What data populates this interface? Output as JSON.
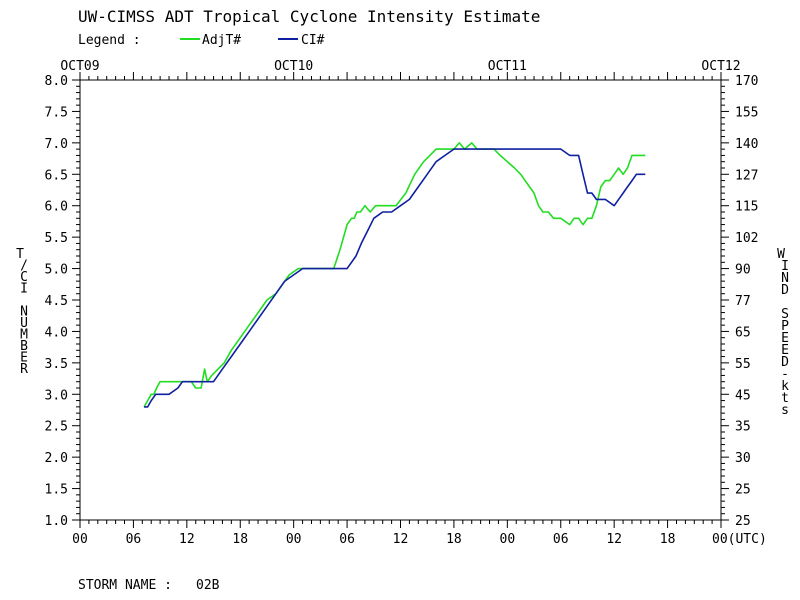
{
  "chart_data": {
    "type": "line",
    "title": "UW-CIMSS ADT Tropical Cyclone Intensity Estimate",
    "legend": {
      "label": "Legend :",
      "placement": "top-left",
      "entries": [
        {
          "name": "AdjT#",
          "color": "#22dd22"
        },
        {
          "name": "CI#",
          "color": "#1020a0"
        }
      ]
    },
    "ylabel_left": "T/CI NUMBER",
    "ylabel_right": "WIND SPEED-kts",
    "ylim": [
      1.0,
      8.0
    ],
    "y_ticks": [
      1.0,
      1.5,
      2.0,
      2.5,
      3.0,
      3.5,
      4.0,
      4.5,
      5.0,
      5.5,
      6.0,
      6.5,
      7.0,
      7.5,
      8.0
    ],
    "y_tick_labels": [
      "1.0",
      "1.5",
      "2.0",
      "2.5",
      "3.0",
      "3.5",
      "4.0",
      "4.5",
      "5.0",
      "5.5",
      "6.0",
      "6.5",
      "7.0",
      "7.5",
      "8.0"
    ],
    "right_tick_labels": [
      "25",
      "25",
      "30",
      "35",
      "45",
      "55",
      "65",
      "77",
      "90",
      "102",
      "115",
      "127",
      "140",
      "155",
      "170"
    ],
    "xlim": [
      0,
      72
    ],
    "x_ticks": [
      0,
      6,
      12,
      18,
      24,
      30,
      36,
      42,
      48,
      54,
      60,
      66,
      72
    ],
    "x_tick_labels": [
      "00",
      "06",
      "12",
      "18",
      "00",
      "06",
      "12",
      "18",
      "00",
      "06",
      "12",
      "18",
      "00(UTC)"
    ],
    "date_ticks": [
      0,
      24,
      48,
      72
    ],
    "date_labels": [
      "OCT09",
      "OCT10",
      "OCT11",
      "OCT12"
    ],
    "grid": false,
    "series": [
      {
        "name": "AdjT#",
        "color": "#22dd22",
        "x": [
          7.2,
          7.6,
          8.0,
          8.3,
          8.6,
          9.0,
          9.5,
          10.0,
          11.0,
          11.5,
          12.5,
          13.0,
          13.6,
          14.0,
          14.3,
          14.8,
          15.5,
          16.2,
          17.0,
          18.0,
          19.0,
          20.0,
          21.0,
          22.0,
          23.0,
          23.5,
          24.5,
          25.5,
          26.5,
          27.5,
          28.5,
          29.2,
          30.0,
          30.5,
          30.8,
          31.1,
          31.5,
          32.0,
          32.6,
          33.2,
          33.8,
          34.3,
          35.5,
          36.6,
          37.6,
          38.6,
          39.3,
          40.0,
          40.6,
          41.3,
          42.0,
          42.6,
          43.2,
          44.0,
          44.6,
          45.2,
          45.8,
          46.5,
          47.2,
          48.0,
          48.8,
          49.5,
          50.0,
          50.5,
          51.0,
          51.5,
          52.0,
          52.6,
          53.2,
          54.0,
          55.0,
          55.5,
          56.0,
          56.5,
          57.0,
          57.5,
          58.0,
          58.5,
          59.0,
          59.5,
          60.0,
          60.5,
          61.0,
          61.5,
          62.0,
          62.5,
          63.0,
          63.5
        ],
        "values": [
          2.8,
          2.9,
          3.0,
          3.0,
          3.1,
          3.2,
          3.2,
          3.2,
          3.2,
          3.2,
          3.2,
          3.1,
          3.1,
          3.4,
          3.2,
          3.3,
          3.4,
          3.5,
          3.7,
          3.9,
          4.1,
          4.3,
          4.5,
          4.6,
          4.8,
          4.9,
          5.0,
          5.0,
          5.0,
          5.0,
          5.0,
          5.3,
          5.7,
          5.8,
          5.8,
          5.9,
          5.9,
          6.0,
          5.9,
          6.0,
          6.0,
          6.0,
          6.0,
          6.2,
          6.5,
          6.7,
          6.8,
          6.9,
          6.9,
          6.9,
          6.9,
          7.0,
          6.9,
          7.0,
          6.9,
          6.9,
          6.9,
          6.9,
          6.8,
          6.7,
          6.6,
          6.5,
          6.4,
          6.3,
          6.2,
          6.0,
          5.9,
          5.9,
          5.8,
          5.8,
          5.7,
          5.8,
          5.8,
          5.7,
          5.8,
          5.8,
          6.0,
          6.3,
          6.4,
          6.4,
          6.5,
          6.6,
          6.5,
          6.6,
          6.8,
          6.8,
          6.8,
          6.8
        ]
      },
      {
        "name": "CI#",
        "color": "#1020a0",
        "x": [
          7.2,
          7.6,
          8.0,
          8.5,
          9.0,
          9.5,
          10.0,
          11.0,
          11.5,
          12.5,
          13.0,
          14.0,
          15.0,
          16.0,
          17.0,
          18.0,
          19.0,
          20.0,
          21.0,
          22.0,
          23.0,
          24.0,
          25.0,
          26.0,
          27.0,
          28.0,
          29.0,
          30.0,
          31.0,
          31.6,
          32.3,
          33.0,
          34.0,
          35.0,
          36.0,
          37.0,
          38.0,
          39.0,
          40.0,
          41.0,
          42.0,
          43.0,
          44.0,
          45.0,
          46.0,
          47.0,
          48.0,
          49.0,
          50.0,
          51.0,
          52.0,
          53.0,
          54.0,
          55.0,
          56.0,
          56.5,
          57.0,
          57.5,
          58.0,
          59.0,
          60.0,
          60.5,
          61.0,
          61.5,
          62.0,
          62.5,
          63.0,
          63.5
        ],
        "values": [
          2.8,
          2.8,
          2.9,
          3.0,
          3.0,
          3.0,
          3.0,
          3.1,
          3.2,
          3.2,
          3.2,
          3.2,
          3.2,
          3.4,
          3.6,
          3.8,
          4.0,
          4.2,
          4.4,
          4.6,
          4.8,
          4.9,
          5.0,
          5.0,
          5.0,
          5.0,
          5.0,
          5.0,
          5.2,
          5.4,
          5.6,
          5.8,
          5.9,
          5.9,
          6.0,
          6.1,
          6.3,
          6.5,
          6.7,
          6.8,
          6.9,
          6.9,
          6.9,
          6.9,
          6.9,
          6.9,
          6.9,
          6.9,
          6.9,
          6.9,
          6.9,
          6.9,
          6.9,
          6.8,
          6.8,
          6.5,
          6.2,
          6.2,
          6.1,
          6.1,
          6.0,
          6.1,
          6.2,
          6.3,
          6.4,
          6.5,
          6.5,
          6.5
        ]
      }
    ]
  },
  "footer": {
    "storm_name_label": "STORM NAME :",
    "storm_name": "02B"
  }
}
